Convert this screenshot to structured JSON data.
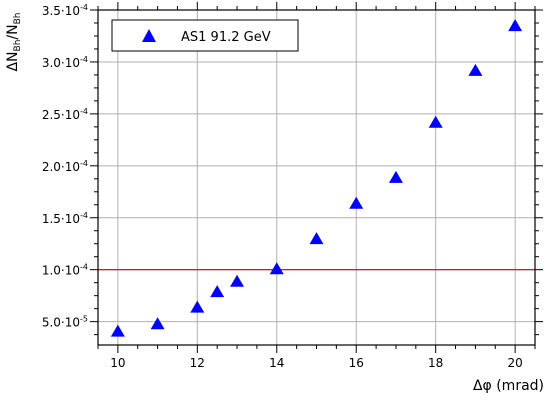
{
  "chart_data": {
    "type": "scatter",
    "title": "",
    "xlabel": "Δφ (mrad)",
    "ylabel_parts": {
      "main": "ΔN",
      "sub1": "Bh",
      "slash": "/N",
      "sub2": "Bh"
    },
    "xlim": [
      9.5,
      20.5
    ],
    "ylim": [
      2.75e-05,
      0.00035
    ],
    "x_ticks": [
      10,
      12,
      14,
      16,
      18,
      20
    ],
    "x_tick_labels": [
      "10",
      "12",
      "14",
      "16",
      "18",
      "20"
    ],
    "y_ticks": [
      5e-05,
      0.0001,
      0.00015,
      0.0002,
      0.00025,
      0.0003,
      0.00035
    ],
    "y_tick_labels": [
      {
        "mant": "5.0·10",
        "exp": "-5"
      },
      {
        "mant": "1.0·10",
        "exp": "-4"
      },
      {
        "mant": "1.5·10",
        "exp": "-4"
      },
      {
        "mant": "2.0·10",
        "exp": "-4"
      },
      {
        "mant": "2.5·10",
        "exp": "-4"
      },
      {
        "mant": "3.0·10",
        "exp": "-4"
      },
      {
        "mant": "3.5·10",
        "exp": "-4"
      }
    ],
    "grid": true,
    "legend_position": "top-left",
    "series": [
      {
        "name": "AS1 91.2 GeV",
        "marker": "triangle",
        "color": "#0000ff",
        "x": [
          10,
          11,
          12,
          12.5,
          13,
          14,
          15,
          16,
          17,
          18,
          19,
          20
        ],
        "y": [
          4e-05,
          4.7e-05,
          6.3e-05,
          7.8e-05,
          8.8e-05,
          0.0001,
          0.000129,
          0.000163,
          0.000188,
          0.000241,
          0.000291,
          0.000334
        ]
      }
    ],
    "reference_line": {
      "y": 0.0001,
      "color": "#dd0000"
    }
  }
}
